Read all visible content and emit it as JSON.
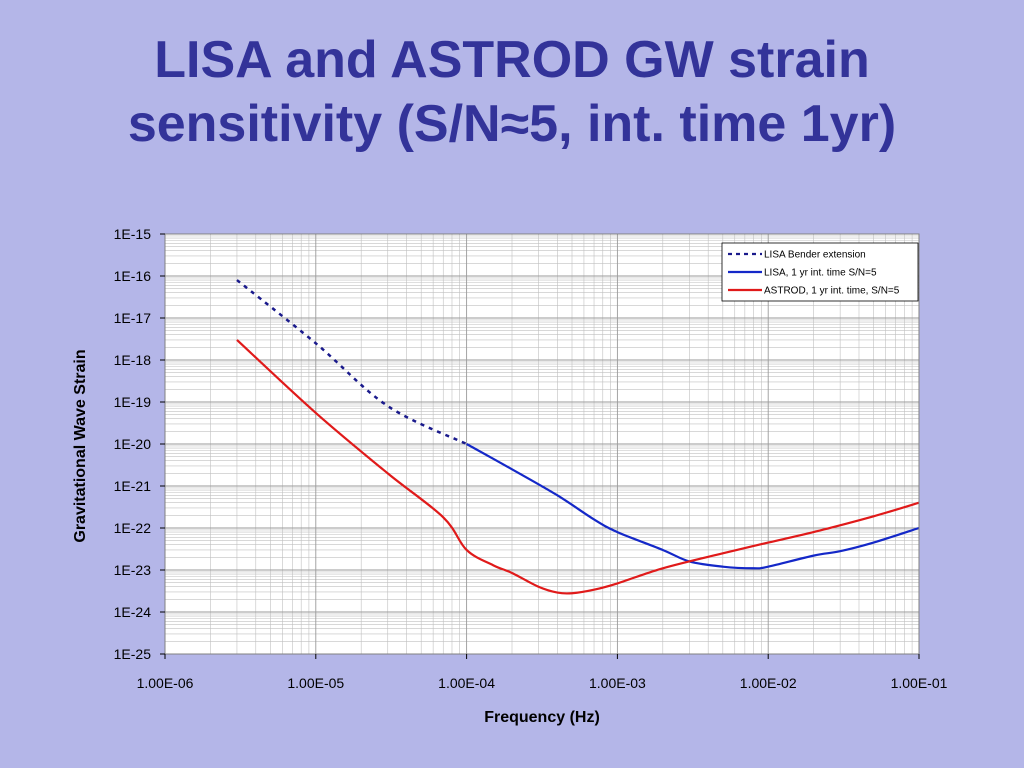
{
  "slide": {
    "title_line1": "LISA and ASTROD GW strain",
    "title_line2": "sensitivity (S/N≈5, int. time 1yr)"
  },
  "colors": {
    "background": "#b4b6e8",
    "title": "#333399",
    "lisa": "#1428c8",
    "astrod": "#e01a1a",
    "plot_area": "#ffffff",
    "grid": "#c0c0c0"
  },
  "chart_data": {
    "type": "line",
    "xlabel": "Frequency (Hz)",
    "ylabel": "Gravitational Wave Strain",
    "xscale": "log",
    "yscale": "log",
    "xlim": [
      1e-06,
      0.1
    ],
    "ylim": [
      1e-25,
      1e-15
    ],
    "x_tick_labels": [
      "1.00E-06",
      "1.00E-05",
      "1.00E-04",
      "1.00E-03",
      "1.00E-02",
      "1.00E-01"
    ],
    "y_tick_labels": [
      "1E-15",
      "1E-16",
      "1E-17",
      "1E-18",
      "1E-19",
      "1E-20",
      "1E-21",
      "1E-22",
      "1E-23",
      "1E-24",
      "1E-25"
    ],
    "grid": true,
    "legend_position": "top-right",
    "series": [
      {
        "name": "LISA Bender extension",
        "color": "#1a1a8c",
        "style": "dashed",
        "x": [
          3e-06,
          1e-05,
          3e-05,
          0.0001
        ],
        "y": [
          8e-17,
          2.5e-18,
          8e-20,
          1e-20
        ]
      },
      {
        "name": "LISA, 1 yr int. time S/N=5",
        "color": "#1428c8",
        "style": "solid",
        "x": [
          0.0001,
          0.0002,
          0.0004,
          0.0007,
          0.001,
          0.002,
          0.003,
          0.005,
          0.008,
          0.01,
          0.02,
          0.03,
          0.05,
          0.1
        ],
        "y": [
          1e-20,
          2.5e-21,
          6e-22,
          1.6e-22,
          8e-23,
          3e-23,
          1.6e-23,
          1.2e-23,
          1.1e-23,
          1.2e-23,
          2.2e-23,
          2.8e-23,
          4.5e-23,
          1e-22
        ]
      },
      {
        "name": "ASTROD, 1 yr int. time, S/N=5",
        "color": "#e01a1a",
        "style": "solid",
        "x": [
          3e-06,
          1e-05,
          3e-05,
          7e-05,
          0.0001,
          0.00015,
          0.0002,
          0.0003,
          0.0004,
          0.0005,
          0.0007,
          0.001,
          0.002,
          0.005,
          0.01,
          0.02,
          0.05,
          0.1
        ],
        "y": [
          3e-18,
          5.5e-20,
          2e-21,
          1.8e-22,
          3e-23,
          1.3e-23,
          8.5e-24,
          4e-24,
          2.9e-24,
          2.8e-24,
          3.4e-24,
          4.8e-24,
          1.1e-23,
          2.5e-23,
          4.5e-23,
          8e-23,
          1.9e-22,
          4e-22
        ]
      }
    ]
  }
}
